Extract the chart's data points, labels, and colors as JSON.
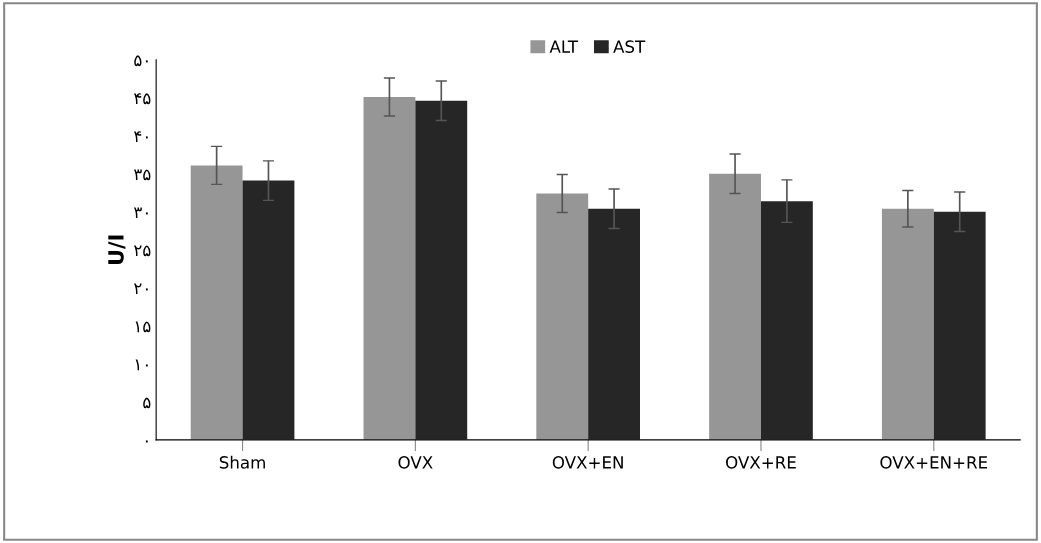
{
  "chart_data": {
    "type": "bar",
    "ylabel": "U/I",
    "categories": [
      "Sham",
      "OVX",
      "OVX+EN",
      "OVX+RE",
      "OVX+EN+RE"
    ],
    "series": [
      {
        "name": "ALT",
        "color": "#969696",
        "values": [
          36.1,
          45.1,
          32.4,
          35.0,
          30.4
        ],
        "errors": [
          2.5,
          2.5,
          2.5,
          2.6,
          2.4
        ]
      },
      {
        "name": "AST",
        "color": "#262626",
        "values": [
          34.1,
          44.6,
          30.4,
          31.4,
          30.0
        ],
        "errors": [
          2.6,
          2.6,
          2.6,
          2.8,
          2.6
        ]
      }
    ],
    "ylim": [
      0,
      50
    ],
    "yticks": [
      {
        "value": 0,
        "label": "۰"
      },
      {
        "value": 5,
        "label": "۵"
      },
      {
        "value": 10,
        "label": "۱۰"
      },
      {
        "value": 15,
        "label": "۱۵"
      },
      {
        "value": 20,
        "label": "۲۰"
      },
      {
        "value": 25,
        "label": "۲۵"
      },
      {
        "value": 30,
        "label": "۳۰"
      },
      {
        "value": 35,
        "label": "۳۵"
      },
      {
        "value": 40,
        "label": "۴۰"
      },
      {
        "value": 45,
        "label": "۴۵"
      },
      {
        "value": 50,
        "label": "۵۰"
      }
    ],
    "grid": false,
    "legend": "top"
  }
}
